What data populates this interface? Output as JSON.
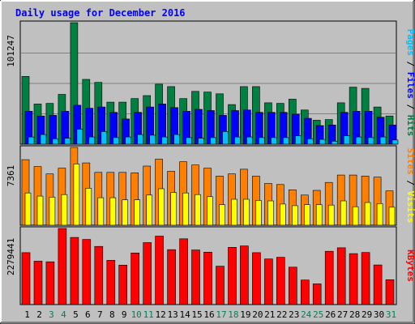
{
  "chart_data": {
    "type": "bar",
    "title": "Daily usage for December 2016",
    "categories": [
      "1",
      "2",
      "3",
      "4",
      "5",
      "6",
      "7",
      "8",
      "9",
      "10",
      "11",
      "12",
      "13",
      "14",
      "15",
      "16",
      "17",
      "18",
      "19",
      "20",
      "21",
      "22",
      "23",
      "24",
      "25",
      "26",
      "27",
      "28",
      "29",
      "30",
      "31"
    ],
    "weekend_days": [
      "3",
      "4",
      "10",
      "11",
      "17",
      "18",
      "24",
      "25",
      "31"
    ],
    "panels": [
      {
        "id": "hits-panel",
        "max_label": "101247",
        "ylim": [
          0,
          101247
        ],
        "series": [
          {
            "name": "Hits",
            "color": "#008040",
            "values": [
              56500,
              33500,
              34000,
              41500,
              101247,
              54000,
              51500,
              35000,
              35000,
              38000,
              40500,
              50000,
              48000,
              38000,
              44000,
              43500,
              42000,
              33000,
              48000,
              48000,
              34500,
              34000,
              37500,
              28500,
              20000,
              20500,
              34500,
              47500,
              46500,
              31000,
              23500
            ]
          },
          {
            "name": "Files",
            "color": "#0000ff",
            "values": [
              27500,
              23500,
              24000,
              27500,
              32500,
              30000,
              31000,
              26500,
              21000,
              26500,
              31000,
              33500,
              30500,
              27500,
              29000,
              28000,
              24000,
              28000,
              28500,
              26500,
              26500,
              26500,
              25000,
              21500,
              15500,
              16000,
              26500,
              27500,
              27500,
              22500,
              16000
            ]
          },
          {
            "name": "Pages",
            "color": "#00c0ff",
            "values": [
              6000,
              8000,
              4500,
              5000,
              12500,
              6000,
              10500,
              5500,
              6000,
              8000,
              7500,
              6000,
              8000,
              5500,
              5000,
              5500,
              10500,
              6000,
              6000,
              5500,
              5500,
              5500,
              7000,
              4500,
              4000,
              2500,
              7000,
              6000,
              5500,
              6000,
              3500
            ]
          }
        ],
        "side_labels": [
          {
            "text": "Pages",
            "color": "#00c0ff"
          },
          {
            "text": " / ",
            "color": "#000000"
          },
          {
            "text": "Files",
            "color": "#0000ff"
          },
          {
            "text": " / ",
            "color": "#000000"
          },
          {
            "text": "Hits",
            "color": "#008040"
          }
        ]
      },
      {
        "id": "visits-panel",
        "max_label": "7361",
        "ylim": [
          0,
          7361
        ],
        "series": [
          {
            "name": "Sites",
            "color": "#ff8000",
            "values": [
              6200,
              5550,
              4850,
              5400,
              7361,
              5900,
              5000,
              5000,
              5000,
              4950,
              5600,
              6250,
              5100,
              6000,
              5700,
              5400,
              4650,
              4850,
              5300,
              4650,
              3950,
              3850,
              3350,
              2850,
              3300,
              4050,
              4750,
              4750,
              4650,
              4550,
              3250
            ]
          },
          {
            "name": "Visits",
            "color": "#ffff00",
            "values": [
              3050,
              2750,
              2650,
              2900,
              5800,
              3500,
              2600,
              2600,
              2400,
              2400,
              2850,
              3450,
              3100,
              3050,
              2900,
              2700,
              1950,
              2450,
              2450,
              2350,
              2300,
              2000,
              1850,
              1950,
              1950,
              1900,
              2300,
              1750,
              2150,
              2050,
              1700
            ]
          }
        ],
        "side_labels": [
          {
            "text": "Sites",
            "color": "#ff8000"
          },
          {
            "text": " / ",
            "color": "#000000"
          },
          {
            "text": "Visits",
            "color": "#ffff00"
          }
        ]
      },
      {
        "id": "kbytes-panel",
        "max_label": "2279441",
        "ylim": [
          0,
          2279441
        ],
        "series": [
          {
            "name": "KBytes",
            "color": "#ff0000",
            "values": [
              1555000,
              1300000,
              1280000,
              2279441,
              2010000,
              1950000,
              1740000,
              1325000,
              1180000,
              1545000,
              1855000,
              2050000,
              1645000,
              1970000,
              1635000,
              1570000,
              1150000,
              1715000,
              1755000,
              1555000,
              1365000,
              1415000,
              1120000,
              735000,
              620000,
              1595000,
              1700000,
              1525000,
              1560000,
              1185000,
              745000
            ]
          }
        ],
        "side_labels": [
          {
            "text": "KBytes",
            "color": "#ff0000"
          }
        ]
      }
    ],
    "xlabel": "",
    "ylabel": "",
    "grid": true,
    "legend": "right-vertical"
  }
}
